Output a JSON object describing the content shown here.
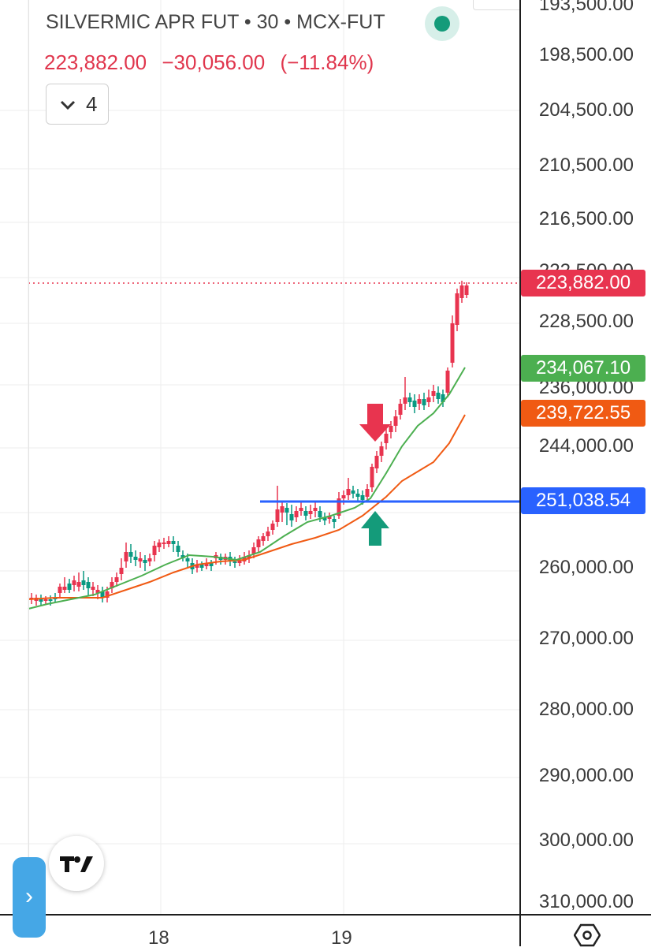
{
  "header": {
    "symbol": "SILVERMIC APR FUT",
    "interval": "30",
    "exchange": "MCX-FUT",
    "separator": "•",
    "price": "223,882.00",
    "change": "−30,056.00",
    "change_pct": "(−11.84%)",
    "indicator_count": "4"
  },
  "price_axis": {
    "labels": [
      "193,500.00",
      "198,500.00",
      "204,500.00",
      "210,500.00",
      "216,500.00",
      "222,500.00",
      "228,500.00",
      "236,000.00",
      "244,000.00",
      "260,000.00",
      "270,000.00",
      "280,000.00",
      "290,000.00",
      "300,000.00",
      "310,000.00"
    ],
    "badges": [
      {
        "text": "223,882.00",
        "color": "#e8344f"
      },
      {
        "text": "234,067.10",
        "color": "#4caf50"
      },
      {
        "text": "239,722.55",
        "color": "#f05a13"
      },
      {
        "text": "251,038.54",
        "color": "#2962ff"
      }
    ]
  },
  "time_axis": {
    "labels": [
      "18",
      "19"
    ]
  },
  "colors": {
    "up": "#089981",
    "down": "#e8344f",
    "ma_fast": "#4caf50",
    "ma_slow": "#f05a13",
    "level_line": "#2962ff",
    "arrow_down": "#e8344f",
    "arrow_up": "#149b7a"
  },
  "icons": {
    "collapse": "chevron-down-icon",
    "logo": "tradingview-logo",
    "side_tab": "chevron-right-icon",
    "settings": "hexagon-settings-icon",
    "status": "live-status-dot"
  },
  "chart_data": {
    "type": "candlestick",
    "series": [
      {
        "name": "price"
      },
      {
        "name": "ma_fast"
      },
      {
        "name": "ma_slow"
      }
    ],
    "last_price": 223882.0,
    "ma_fast_last": 234067.1,
    "ma_slow_last": 239722.55,
    "horizontal_level": 251038.54,
    "y_axis_inverted": true
  }
}
